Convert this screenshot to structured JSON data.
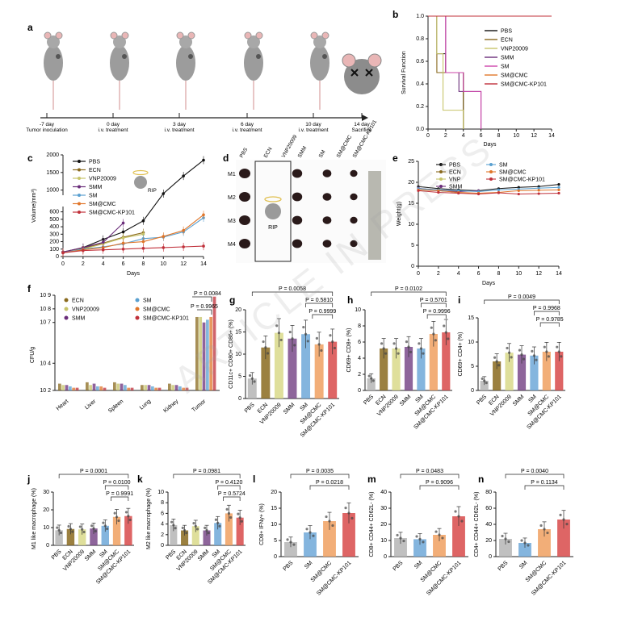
{
  "panels": {
    "a": "a",
    "b": "b",
    "c": "c",
    "d": "d",
    "e": "e",
    "f": "f",
    "g": "g",
    "h": "h",
    "i": "i",
    "j": "j",
    "k": "k",
    "l": "l",
    "m": "m",
    "n": "n"
  },
  "watermark": "ARTICLE IN PRESS",
  "timeline": [
    {
      "day": "-7 day",
      "action": "Tumor inoculation"
    },
    {
      "day": "0 day",
      "action": "i.v. treatment"
    },
    {
      "day": "3 day",
      "action": "i.v. treatment"
    },
    {
      "day": "6 day",
      "action": "i.v. treatment"
    },
    {
      "day": "10 day",
      "action": "i.v. treatment"
    },
    {
      "day": "14 day",
      "action": "Sacrifice"
    }
  ],
  "photo": {
    "rows": [
      "M1",
      "M2",
      "M3",
      "M4"
    ],
    "cols": [
      "PBS",
      "ECN",
      "VNP20009",
      "SMM",
      "SM",
      "SM@CMC",
      "SM@CMC-KP101"
    ],
    "rip": "RIP"
  },
  "chart_data": [
    {
      "panel": "b",
      "type": "line",
      "ylabel": "Survival Function",
      "xlabel": "Days",
      "xlim": [
        0,
        14
      ],
      "ylim": [
        0,
        1
      ],
      "xticks": [
        0,
        2,
        4,
        6,
        8,
        10,
        12,
        14
      ],
      "yticks": [
        0.0,
        0.2,
        0.4,
        0.6,
        0.8,
        1.0
      ],
      "series": [
        {
          "name": "PBS",
          "color": "#111111",
          "steps": [
            [
              0,
              1
            ],
            [
              1,
              0.667
            ],
            [
              2,
              0.5
            ],
            [
              4,
              0
            ]
          ]
        },
        {
          "name": "ECN",
          "color": "#8a6a1e",
          "steps": [
            [
              0,
              1
            ],
            [
              1,
              0.5
            ],
            [
              4,
              0
            ]
          ]
        },
        {
          "name": "VNP20009",
          "color": "#c7c46a",
          "steps": [
            [
              0,
              1
            ],
            [
              1,
              0.667
            ],
            [
              1.7,
              0.167
            ],
            [
              4,
              0
            ]
          ]
        },
        {
          "name": "SMM",
          "color": "#6a2d7a",
          "steps": [
            [
              0,
              1
            ],
            [
              2,
              0.5
            ],
            [
              3.5,
              0.333
            ],
            [
              6,
              0
            ]
          ]
        },
        {
          "name": "SM",
          "color": "#cc44aa",
          "steps": [
            [
              0,
              1
            ],
            [
              2,
              0.5
            ],
            [
              4,
              0.333
            ],
            [
              6,
              0
            ]
          ]
        },
        {
          "name": "SM@CMC",
          "color": "#e0762a",
          "steps": [
            [
              0,
              1
            ],
            [
              14,
              1
            ]
          ]
        },
        {
          "name": "SM@CMC-KP101",
          "color": "#c0303a",
          "steps": [
            [
              0,
              1
            ],
            [
              14,
              1
            ]
          ]
        }
      ]
    },
    {
      "panel": "c",
      "type": "line",
      "ylabel": "Volume(mm³)",
      "xlabel": "Days",
      "xlim": [
        0,
        14
      ],
      "xticks": [
        0,
        2,
        4,
        6,
        8,
        10,
        12,
        14
      ],
      "yticks_low": [
        0,
        100,
        200,
        300,
        400,
        500,
        600
      ],
      "yticks_high": [
        1000,
        1500,
        2000
      ],
      "series": [
        {
          "name": "PBS",
          "color": "#111111",
          "x": [
            0,
            2,
            4,
            6,
            8,
            10,
            12,
            14
          ],
          "y": [
            60,
            120,
            230,
            330,
            480,
            900,
            1400,
            1850
          ]
        },
        {
          "name": "ECN",
          "color": "#8a6a1e",
          "x": [
            0,
            2,
            4,
            6,
            8
          ],
          "y": [
            60,
            110,
            180,
            260,
            320
          ]
        },
        {
          "name": "VNP20009",
          "color": "#c7c46a",
          "x": [
            0,
            2,
            4,
            6,
            8
          ],
          "y": [
            60,
            100,
            170,
            250,
            300
          ]
        },
        {
          "name": "SMM",
          "color": "#6a2d7a",
          "x": [
            0,
            2,
            4,
            6
          ],
          "y": [
            60,
            120,
            190,
            450
          ]
        },
        {
          "name": "SM",
          "color": "#5aa0d0",
          "x": [
            0,
            2,
            4,
            6,
            8,
            10,
            12,
            14
          ],
          "y": [
            50,
            100,
            130,
            170,
            240,
            260,
            330,
            520
          ]
        },
        {
          "name": "SM@CMC",
          "color": "#e0762a",
          "x": [
            0,
            2,
            4,
            6,
            8,
            10,
            12,
            14
          ],
          "y": [
            50,
            90,
            120,
            180,
            200,
            270,
            350,
            560
          ]
        },
        {
          "name": "SM@CMC-KP101",
          "color": "#c0303a",
          "x": [
            0,
            2,
            4,
            6,
            8,
            10,
            12,
            14
          ],
          "y": [
            50,
            80,
            90,
            100,
            110,
            120,
            130,
            140
          ]
        }
      ]
    },
    {
      "panel": "e",
      "type": "line",
      "ylabel": "Weight(g)",
      "xlabel": "Days",
      "xlim": [
        0,
        14
      ],
      "ylim": [
        0,
        25
      ],
      "xticks": [
        0,
        2,
        4,
        6,
        8,
        10,
        12,
        14
      ],
      "yticks": [
        0,
        5,
        10,
        15,
        20,
        25
      ],
      "legend": [
        "PBS",
        "ECN",
        "VNP",
        "SMM",
        "SM",
        "SM@CMC",
        "SM@CMC-KP101"
      ],
      "series": [
        {
          "name": "PBS",
          "color": "#111111",
          "x": [
            0,
            2,
            4,
            6,
            8,
            10,
            12,
            14
          ],
          "y": [
            19,
            18.5,
            18.2,
            18,
            18.5,
            18.8,
            19,
            19.5
          ]
        },
        {
          "name": "ECN",
          "color": "#8a6a1e",
          "x": [
            0,
            2,
            4
          ],
          "y": [
            18.5,
            18.2,
            17.5
          ]
        },
        {
          "name": "VNP",
          "color": "#c7c46a",
          "x": [
            0,
            2,
            4
          ],
          "y": [
            18.5,
            18,
            17.8
          ]
        },
        {
          "name": "SMM",
          "color": "#6a2d7a",
          "x": [
            0,
            2,
            4,
            6
          ],
          "y": [
            18.6,
            18,
            17.8,
            18
          ]
        },
        {
          "name": "SM",
          "color": "#5aa0d0",
          "x": [
            0,
            2,
            4,
            6,
            8,
            10,
            12,
            14
          ],
          "y": [
            18.5,
            18.2,
            18,
            17.8,
            18.2,
            18.4,
            18.6,
            18.8
          ]
        },
        {
          "name": "SM@CMC",
          "color": "#e0762a",
          "x": [
            0,
            2,
            4,
            6,
            8,
            10,
            12,
            14
          ],
          "y": [
            18.2,
            18,
            17.6,
            17.4,
            17.6,
            18,
            18.1,
            18.2
          ]
        },
        {
          "name": "SM@CMC-KP101",
          "color": "#c0303a",
          "x": [
            0,
            2,
            4,
            6,
            8,
            10,
            12,
            14
          ],
          "y": [
            18,
            17.6,
            17.4,
            17.2,
            17.5,
            17.2,
            17.3,
            17.4
          ]
        }
      ]
    },
    {
      "panel": "f",
      "type": "bar",
      "ylabel": "CFU/g",
      "categories": [
        "Heart",
        "Liver",
        "Spleen",
        "Lung",
        "Kidney",
        "Tumor"
      ],
      "ytick_labels": [
        "10 2",
        "10 4",
        "10 7",
        "10 8",
        "10 9"
      ],
      "legend": [
        "ECN",
        "VNP20009",
        "SMM",
        "SM",
        "SM@CMC",
        "SM@CMC-KP101"
      ],
      "colors": [
        "#8a6a1e",
        "#c7c46a",
        "#6a2d7a",
        "#5aa0d0",
        "#e0762a",
        "#c0303a"
      ],
      "log_values": [
        [
          2.5,
          2.4,
          2.4,
          2.3,
          2.2,
          2.2
        ],
        [
          2.6,
          2.4,
          2.5,
          2.3,
          2.3,
          2.2
        ],
        [
          2.6,
          2.5,
          2.5,
          2.4,
          2.2,
          2.2
        ],
        [
          2.4,
          2.4,
          2.4,
          2.3,
          2.2,
          2.2
        ],
        [
          2.5,
          2.4,
          2.4,
          2.3,
          2.2,
          2.2
        ],
        [
          7.4,
          7.4,
          7.0,
          7.2,
          7.4,
          8.9
        ]
      ],
      "pvalues": [
        "P = 0.0084",
        "P = 0.9965"
      ]
    },
    {
      "panel": "g",
      "type": "bar",
      "ylabel": "CD11c+ CD80+ CD86+ (%)",
      "ylim": [
        0,
        20
      ],
      "yticks": [
        0,
        5,
        10,
        15,
        20
      ],
      "categories": [
        "PBS",
        "ECN",
        "VNP20009",
        "SMM",
        "SM",
        "SM@CMC",
        "SM@CMC-KP101"
      ],
      "values": [
        4.5,
        11.5,
        14.8,
        13.5,
        14.5,
        12.2,
        12.8
      ],
      "pvalues": [
        "P = 0.0058",
        "P = 0.5810",
        "P = 0.9999"
      ]
    },
    {
      "panel": "h",
      "type": "bar",
      "ylabel": "CD69+ CD8+ (%)",
      "ylim": [
        0,
        10
      ],
      "yticks": [
        0,
        2,
        4,
        6,
        8,
        10
      ],
      "categories": [
        "PBS",
        "ECN",
        "VNP20009",
        "SMM",
        "SM",
        "SM@CMC",
        "SM@CMC-KP101"
      ],
      "values": [
        1.5,
        5.2,
        5.2,
        5.4,
        5.2,
        7.0,
        7.2
      ],
      "pvalues": [
        "P = 0.0102",
        "P = 0.5701",
        "P = 0.9996"
      ]
    },
    {
      "panel": "i",
      "type": "bar",
      "ylabel": "CD69+ CD4+ (%)",
      "ylim": [
        0,
        15
      ],
      "yticks": [
        0,
        5,
        10,
        15
      ],
      "categories": [
        "PBS",
        "ECN",
        "VNP20009",
        "SMM",
        "SM",
        "SM@CMC",
        "SM@CMC-KP101"
      ],
      "values": [
        2,
        6.0,
        7.8,
        7.4,
        7.2,
        8.0,
        8.0
      ],
      "pvalues": [
        "P = 0.0049",
        "P = 0.9968",
        "P = 0.9785"
      ]
    },
    {
      "panel": "j",
      "type": "bar",
      "ylabel": "M1 like macrophage (%)",
      "ylim": [
        0,
        30
      ],
      "yticks": [
        0,
        10,
        20,
        30
      ],
      "categories": [
        "PBS",
        "ECN",
        "VNP20009",
        "SMM",
        "SM",
        "SM@CMC",
        "SM@CMC-KP101"
      ],
      "values": [
        8.5,
        9.2,
        9.0,
        9.5,
        11.0,
        16.0,
        16.5
      ],
      "pvalues": [
        "P = 0.0001",
        "P = 0.0100",
        "P = 0.9991"
      ]
    },
    {
      "panel": "k",
      "type": "bar",
      "ylabel": "M2 like macrophage (%)",
      "ylim": [
        0,
        10
      ],
      "yticks": [
        0,
        2,
        4,
        6,
        8,
        10
      ],
      "categories": [
        "PBS",
        "ECN",
        "VNP20009",
        "SMM",
        "SM",
        "SM@CMC",
        "SM@CMC-KP101"
      ],
      "values": [
        3.8,
        2.8,
        3.6,
        2.8,
        4.2,
        6.0,
        5.2
      ],
      "pvalues": [
        "P = 0.0981",
        "P = 0.4120",
        "P = 0.5724"
      ]
    },
    {
      "panel": "l",
      "type": "bar",
      "ylabel": "CD8+ IFNγ+ (%)",
      "ylim": [
        0,
        20
      ],
      "yticks": [
        0,
        5,
        10,
        15,
        20
      ],
      "categories": [
        "PBS",
        "SM",
        "SM@CMC",
        "SM@CMC-KP101"
      ],
      "values": [
        4.5,
        7.5,
        11.0,
        13.5
      ],
      "pvalues": [
        "P = 0.0035",
        "P = 0.0218"
      ]
    },
    {
      "panel": "m",
      "type": "bar",
      "ylabel": "CD8+ CD44+ CD62L- (%)",
      "ylim": [
        0,
        40
      ],
      "yticks": [
        0,
        10,
        20,
        30,
        40
      ],
      "categories": [
        "PBS",
        "SM",
        "SM@CMC",
        "SM@CMC-KP101"
      ],
      "values": [
        11.5,
        10.8,
        13.5,
        25.0
      ],
      "pvalues": [
        "P = 0.0483",
        "P = 0.9096"
      ]
    },
    {
      "panel": "n",
      "type": "bar",
      "ylabel": "CD4+ CD44+ CD62L- (%)",
      "ylim": [
        0,
        80
      ],
      "yticks": [
        0,
        20,
        40,
        60,
        80
      ],
      "categories": [
        "PBS",
        "SM",
        "SM@CMC",
        "SM@CMC-KP101"
      ],
      "values": [
        22,
        17,
        34,
        46
      ],
      "pvalues": [
        "P = 0.0040",
        "P = 0.1134"
      ]
    }
  ]
}
